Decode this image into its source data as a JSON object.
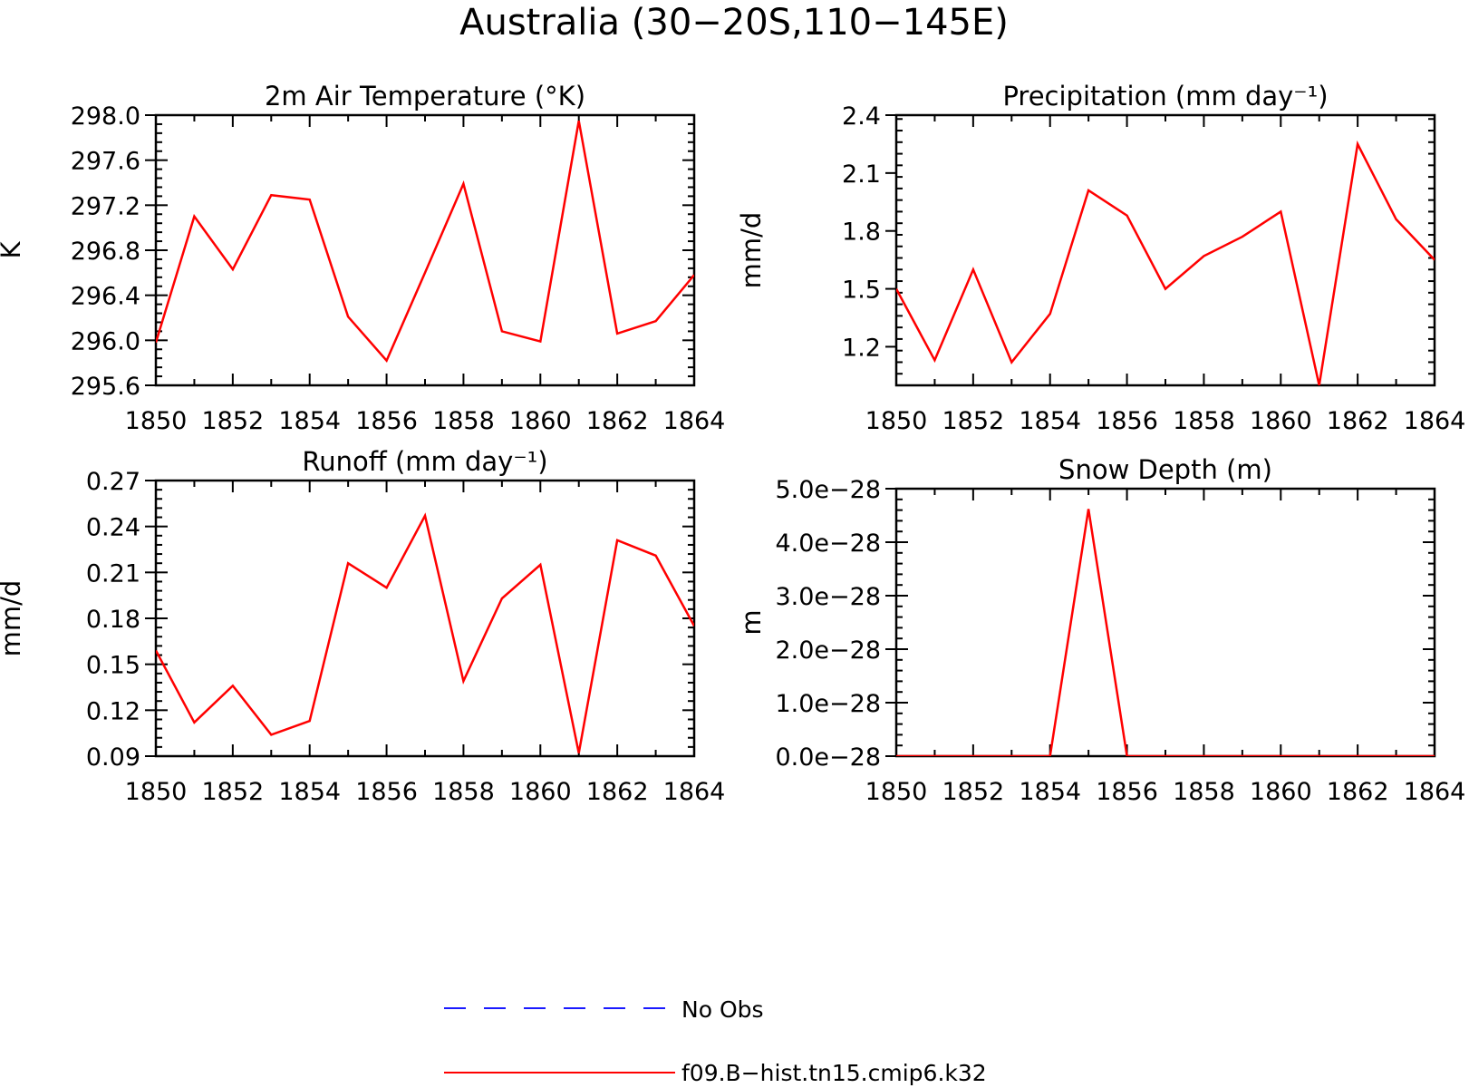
{
  "figure": {
    "title": "Australia (30−20S,110−145E)"
  },
  "legend": {
    "position": "bottom-center",
    "items": [
      {
        "label": "No Obs",
        "color": "#1a1aff",
        "dashed": true
      },
      {
        "label": "f09.B−hist.tn15.cmip6.k32",
        "color": "#ff0000",
        "dashed": false
      }
    ]
  },
  "chart_data": [
    {
      "type": "line",
      "title": "2m Air Temperature (°K)",
      "ylabel": "K",
      "xlabel": "",
      "x": [
        1850,
        1851,
        1852,
        1853,
        1854,
        1855,
        1856,
        1857,
        1858,
        1859,
        1860,
        1861,
        1862,
        1863,
        1864
      ],
      "xticks": [
        "1850",
        "1852",
        "1854",
        "1856",
        "1858",
        "1860",
        "1862",
        "1864"
      ],
      "xlim": [
        1850,
        1864
      ],
      "ylim": [
        295.6,
        298.0
      ],
      "yticks": [
        "295.6",
        "296.0",
        "296.4",
        "296.8",
        "297.2",
        "297.6",
        "298.0"
      ],
      "series": [
        {
          "color": "#ff0000",
          "values": [
            295.98,
            297.1,
            296.63,
            297.29,
            297.25,
            296.21,
            295.82,
            296.6,
            297.39,
            296.08,
            295.99,
            297.95,
            296.06,
            296.17,
            296.58
          ]
        }
      ]
    },
    {
      "type": "line",
      "title": "Precipitation (mm day⁻¹)",
      "ylabel": "mm/d",
      "xlabel": "",
      "x": [
        1850,
        1851,
        1852,
        1853,
        1854,
        1855,
        1856,
        1857,
        1858,
        1859,
        1860,
        1861,
        1862,
        1863,
        1864
      ],
      "xticks": [
        "1850",
        "1852",
        "1854",
        "1856",
        "1858",
        "1860",
        "1862",
        "1864"
      ],
      "xlim": [
        1850,
        1864
      ],
      "ylim": [
        1.0,
        2.4
      ],
      "yticks": [
        "1.2",
        "1.5",
        "1.8",
        "2.1",
        "2.4"
      ],
      "series": [
        {
          "color": "#ff0000",
          "values": [
            1.5,
            1.13,
            1.6,
            1.12,
            1.37,
            2.01,
            1.88,
            1.5,
            1.67,
            1.77,
            1.9,
            1.0,
            2.25,
            1.86,
            1.65
          ]
        }
      ]
    },
    {
      "type": "line",
      "title": "Runoff (mm day⁻¹)",
      "ylabel": "mm/d",
      "xlabel": "",
      "x": [
        1850,
        1851,
        1852,
        1853,
        1854,
        1855,
        1856,
        1857,
        1858,
        1859,
        1860,
        1861,
        1862,
        1863,
        1864
      ],
      "xticks": [
        "1850",
        "1852",
        "1854",
        "1856",
        "1858",
        "1860",
        "1862",
        "1864"
      ],
      "xlim": [
        1850,
        1864
      ],
      "ylim": [
        0.09,
        0.27
      ],
      "yticks": [
        "0.09",
        "0.12",
        "0.15",
        "0.18",
        "0.21",
        "0.24",
        "0.27"
      ],
      "series": [
        {
          "color": "#ff0000",
          "values": [
            0.159,
            0.112,
            0.136,
            0.104,
            0.113,
            0.216,
            0.2,
            0.247,
            0.139,
            0.193,
            0.215,
            0.092,
            0.231,
            0.221,
            0.175
          ]
        }
      ]
    },
    {
      "type": "line",
      "title": "Snow Depth (m)",
      "ylabel": "m",
      "xlabel": "",
      "x": [
        1850,
        1851,
        1852,
        1853,
        1854,
        1855,
        1856,
        1857,
        1858,
        1859,
        1860,
        1861,
        1862,
        1863,
        1864
      ],
      "xticks": [
        "1850",
        "1852",
        "1854",
        "1856",
        "1858",
        "1860",
        "1862",
        "1864"
      ],
      "xlim": [
        1850,
        1864
      ],
      "ylim": [
        0,
        5e-28
      ],
      "yticks": [
        "0.0e−28",
        "1.0e−28",
        "2.0e−28",
        "3.0e−28",
        "4.0e−28",
        "5.0e−28"
      ],
      "series": [
        {
          "color": "#ff0000",
          "values": [
            0,
            0,
            0,
            0,
            0,
            4.62e-28,
            0,
            0,
            0,
            0,
            0,
            0,
            0,
            0,
            0
          ]
        }
      ]
    }
  ]
}
